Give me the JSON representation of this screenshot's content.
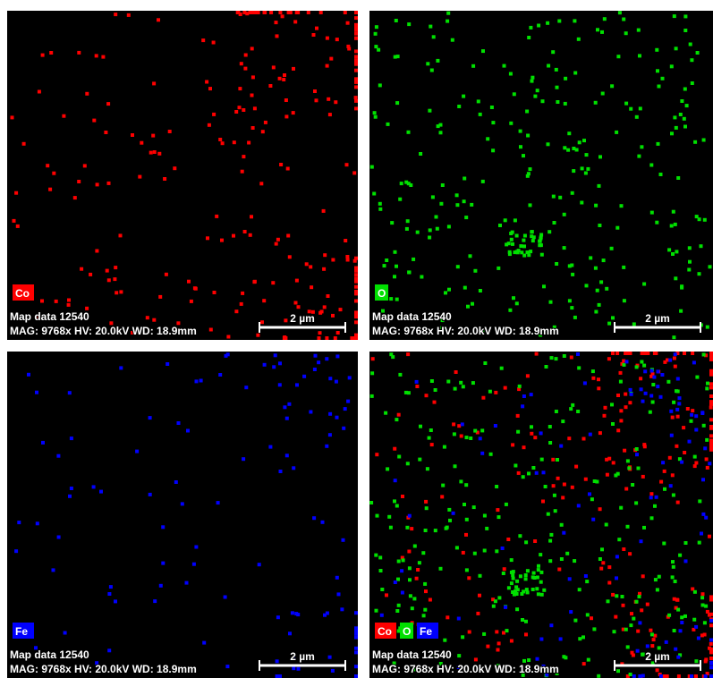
{
  "panels": [
    {
      "legend": [
        {
          "label": "Co",
          "color": "#ff0000"
        }
      ],
      "map_label": "Map data 12540",
      "mag_label": "MAG: 9768x HV: 20.0kV WD: 18.9mm",
      "scale_label": "2 µm"
    },
    {
      "legend": [
        {
          "label": "O",
          "color": "#00e000"
        }
      ],
      "map_label": "Map data 12540",
      "mag_label": "MAG: 9768x HV: 20.0kV WD: 18.9mm",
      "scale_label": "2 µm"
    },
    {
      "legend": [
        {
          "label": "Fe",
          "color": "#0000ff"
        }
      ],
      "map_label": "Map data 12540",
      "mag_label": "MAG: 9768x HV: 20.0kV WD: 18.9mm",
      "scale_label": "2 µm"
    },
    {
      "legend": [
        {
          "label": "Co",
          "color": "#ff0000"
        },
        {
          "label": "O",
          "color": "#00e000"
        },
        {
          "label": "Fe",
          "color": "#0000ff"
        }
      ],
      "map_label": "Map data 12540",
      "mag_label": "MAG: 9768x HV: 20.0kV WD: 18.9mm",
      "scale_label": "2 µm"
    }
  ]
}
